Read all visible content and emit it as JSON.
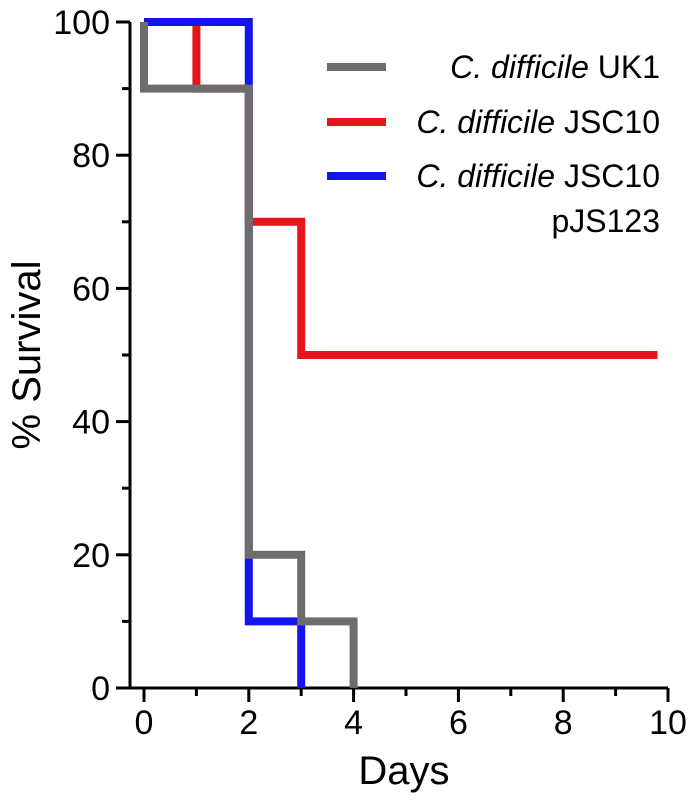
{
  "chart_data": {
    "type": "line",
    "step": true,
    "xlabel": "Days",
    "ylabel": "% Survival",
    "xlim": [
      0,
      10
    ],
    "ylim": [
      0,
      100
    ],
    "xticks": [
      "0",
      "2",
      "4",
      "6",
      "8",
      "10"
    ],
    "yticks": [
      "0",
      "20",
      "40",
      "60",
      "80",
      "100"
    ],
    "grid": false,
    "legend_position": "top-right",
    "series": [
      {
        "name": "C. difficile UK1",
        "name_italic": "C. difficile",
        "name_rest": "UK1",
        "color": "#6d6d6d",
        "x": [
          0,
          0,
          1,
          1,
          2,
          2,
          3,
          3,
          4,
          4
        ],
        "y": [
          100,
          90,
          90,
          90,
          90,
          20,
          20,
          10,
          10,
          0
        ]
      },
      {
        "name": "C. difficile JSC10",
        "name_italic": "C. difficile",
        "name_rest": "JSC10",
        "color": "#e8141b",
        "x": [
          0,
          1,
          1,
          2,
          2,
          3,
          3,
          9.8
        ],
        "y": [
          100,
          100,
          90,
          90,
          70,
          70,
          50,
          50
        ]
      },
      {
        "name": "C. difficile JSC10 pJS123",
        "name_italic": "C. difficile",
        "name_rest": "JSC10",
        "name_line2": "pJS123",
        "color": "#1414f0",
        "x": [
          0,
          2,
          2,
          3,
          3
        ],
        "y": [
          100,
          100,
          10,
          10,
          0
        ]
      }
    ]
  }
}
